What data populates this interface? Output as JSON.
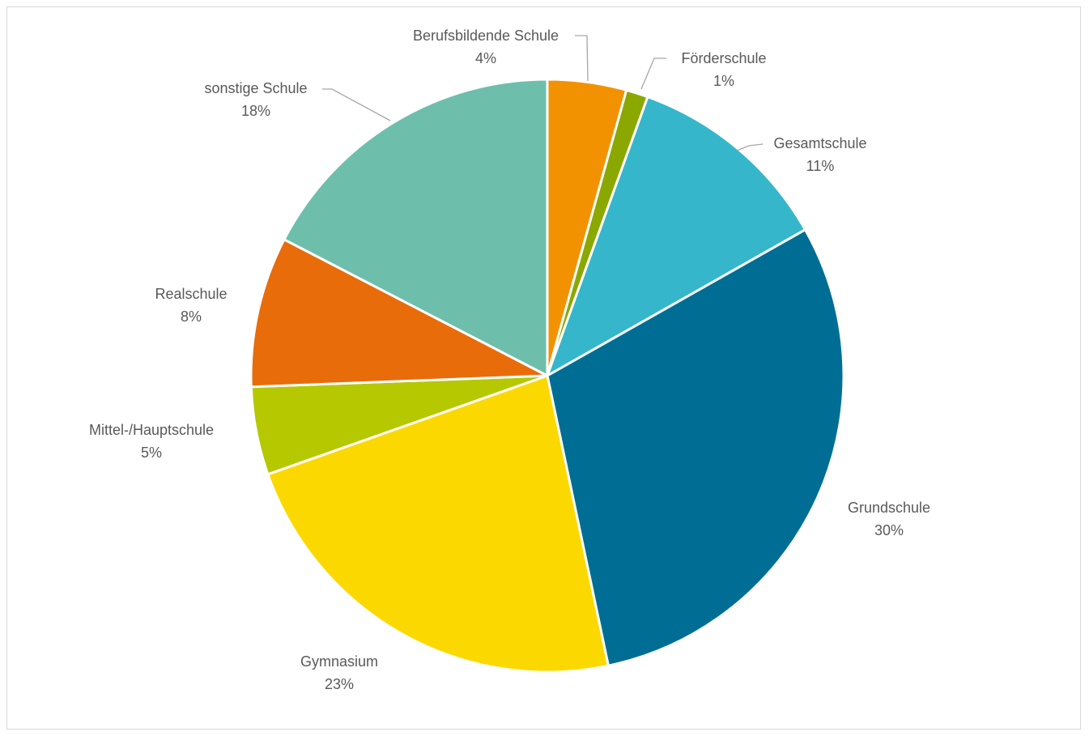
{
  "chart_data": {
    "type": "pie",
    "slices": [
      {
        "label": "Berufsbildende Schule",
        "percent_label": "4%",
        "value": 4.3,
        "color": "#F39200"
      },
      {
        "label": "Förderschule",
        "percent_label": "1%",
        "value": 1.2,
        "color": "#8BA800"
      },
      {
        "label": "Gesamtschule",
        "percent_label": "11%",
        "value": 11.3,
        "color": "#35B6CB"
      },
      {
        "label": "Grundschule",
        "percent_label": "30%",
        "value": 29.9,
        "color": "#006E94"
      },
      {
        "label": "Gymnasium",
        "percent_label": "23%",
        "value": 22.9,
        "color": "#FBD900"
      },
      {
        "label": "Mittel-/Hauptschule",
        "percent_label": "5%",
        "value": 4.8,
        "color": "#B5C800"
      },
      {
        "label": "Realschule",
        "percent_label": "8%",
        "value": 8.2,
        "color": "#E96C0B"
      },
      {
        "label": "sonstige Schule",
        "percent_label": "18%",
        "value": 17.4,
        "color": "#6DBFAC"
      }
    ],
    "start_angle_deg": 0,
    "direction": "clockwise",
    "legend": "none"
  }
}
